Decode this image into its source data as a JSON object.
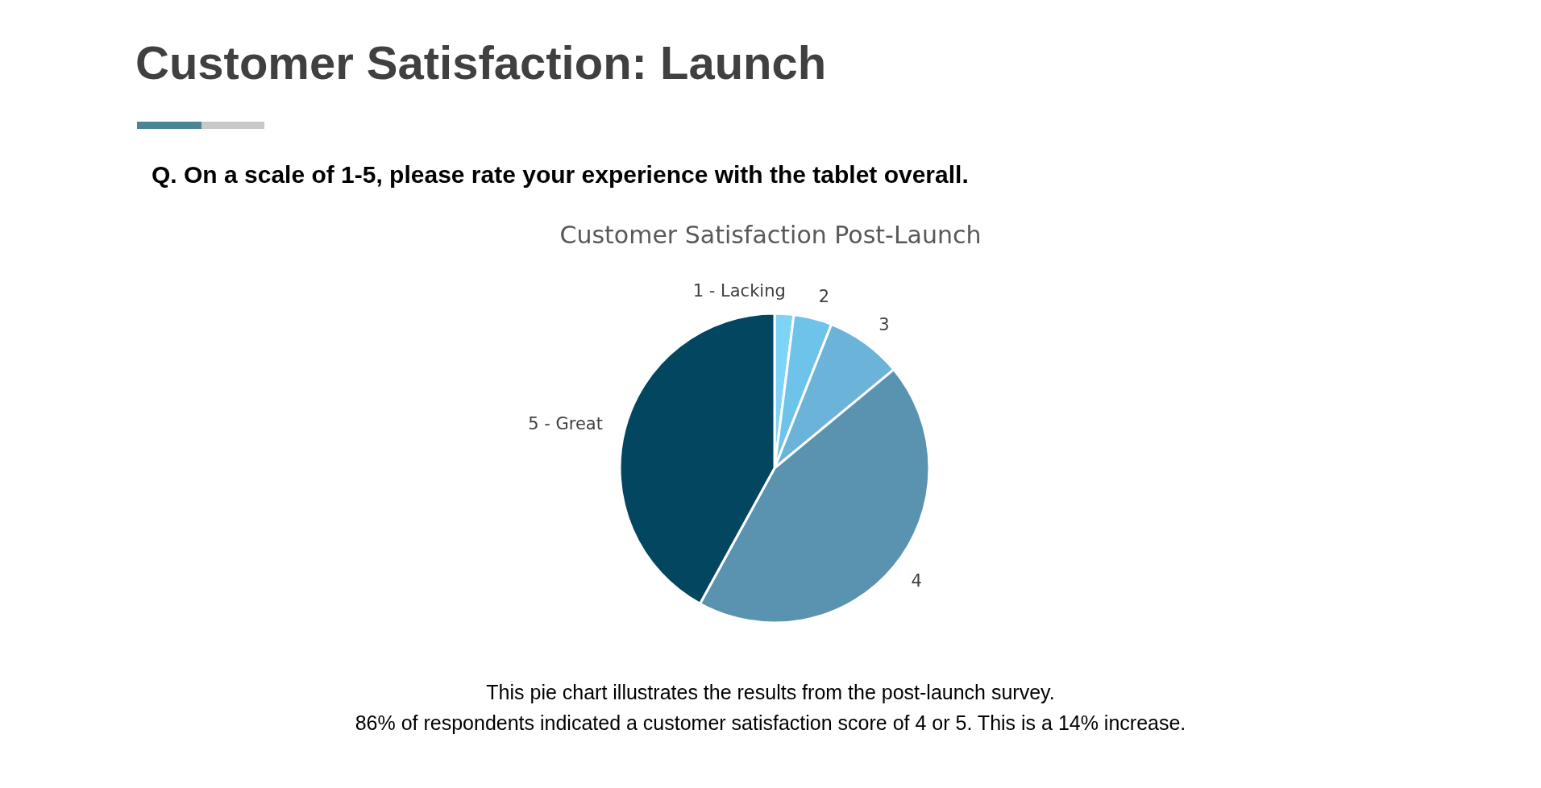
{
  "chart_data": {
    "type": "pie",
    "title": "Customer Satisfaction Post-Launch",
    "subtitle": "Q. On a scale of 1-5, please rate your experience with the tablet overall.",
    "annotations": [
      "Customer Satisfaction: Launch",
      "This pie chart illustrates the results from the post-launch survey.",
      "86% of respondents indicated a customer satisfaction score of 4 or 5. This is a 14% increase."
    ],
    "categories": [
      "1 - Lacking",
      "2",
      "3",
      "4",
      "5 - Great"
    ],
    "values": [
      2,
      4,
      8,
      44,
      42
    ],
    "colors": [
      "#7fd3f5",
      "#6ec3ea",
      "#6bb3d8",
      "#5a93b0",
      "#03465f"
    ]
  }
}
